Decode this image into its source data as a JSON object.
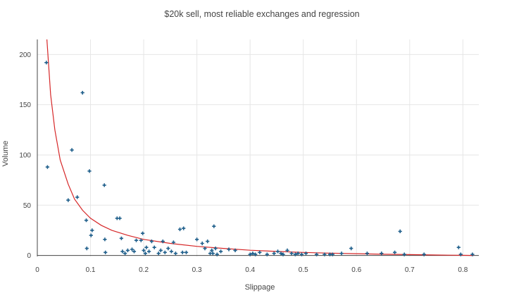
{
  "chart_data": {
    "type": "scatter",
    "title": "$20k sell, most reliable exchanges and regression",
    "xlabel": "Slippage",
    "ylabel": "Volume",
    "xlim": [
      0,
      0.83
    ],
    "ylim": [
      -1,
      215
    ],
    "x_ticks": [
      0,
      0.1,
      0.2,
      0.3,
      0.4,
      0.5,
      0.6,
      0.7,
      0.8
    ],
    "x_tick_labels": [
      "0",
      "0.1",
      "0.2",
      "0.3",
      "0.4",
      "0.5",
      "0.6",
      "0.7",
      "0.8"
    ],
    "y_ticks": [
      0,
      50,
      100,
      150,
      200
    ],
    "y_tick_labels": [
      "0",
      "50",
      "100",
      "150",
      "200"
    ],
    "grid": true,
    "colors": {
      "points": "#1f5f8b",
      "regression": "#d62728",
      "grid": "#e6e6e6",
      "axis": "#444444",
      "text": "#444444"
    },
    "series": [
      {
        "type": "scatter",
        "points": [
          [
            0.017,
            192
          ],
          [
            0.019,
            88
          ],
          [
            0.058,
            55
          ],
          [
            0.065,
            105
          ],
          [
            0.075,
            58
          ],
          [
            0.085,
            162
          ],
          [
            0.092,
            35
          ],
          [
            0.093,
            7
          ],
          [
            0.098,
            84
          ],
          [
            0.101,
            20
          ],
          [
            0.103,
            25
          ],
          [
            0.126,
            70
          ],
          [
            0.127,
            16
          ],
          [
            0.128,
            3
          ],
          [
            0.15,
            37
          ],
          [
            0.155,
            37
          ],
          [
            0.158,
            17
          ],
          [
            0.16,
            4
          ],
          [
            0.165,
            2
          ],
          [
            0.17,
            5
          ],
          [
            0.178,
            6
          ],
          [
            0.182,
            4
          ],
          [
            0.186,
            15
          ],
          [
            0.195,
            15
          ],
          [
            0.198,
            22
          ],
          [
            0.2,
            5
          ],
          [
            0.203,
            2
          ],
          [
            0.205,
            8
          ],
          [
            0.21,
            4
          ],
          [
            0.215,
            14
          ],
          [
            0.22,
            8
          ],
          [
            0.228,
            2
          ],
          [
            0.232,
            5
          ],
          [
            0.236,
            14
          ],
          [
            0.24,
            3
          ],
          [
            0.246,
            7
          ],
          [
            0.252,
            4
          ],
          [
            0.256,
            13
          ],
          [
            0.26,
            2
          ],
          [
            0.268,
            26
          ],
          [
            0.273,
            3
          ],
          [
            0.275,
            27
          ],
          [
            0.28,
            3
          ],
          [
            0.3,
            16
          ],
          [
            0.31,
            12
          ],
          [
            0.315,
            7
          ],
          [
            0.32,
            14
          ],
          [
            0.325,
            2
          ],
          [
            0.328,
            5
          ],
          [
            0.33,
            2
          ],
          [
            0.332,
            29
          ],
          [
            0.335,
            7
          ],
          [
            0.338,
            1
          ],
          [
            0.345,
            4
          ],
          [
            0.36,
            6
          ],
          [
            0.372,
            5
          ],
          [
            0.4,
            1
          ],
          [
            0.405,
            2
          ],
          [
            0.41,
            1
          ],
          [
            0.418,
            3
          ],
          [
            0.432,
            1
          ],
          [
            0.445,
            2
          ],
          [
            0.452,
            4
          ],
          [
            0.458,
            2
          ],
          [
            0.462,
            1
          ],
          [
            0.47,
            5
          ],
          [
            0.478,
            2
          ],
          [
            0.485,
            1
          ],
          [
            0.49,
            2
          ],
          [
            0.497,
            1
          ],
          [
            0.505,
            2
          ],
          [
            0.525,
            1
          ],
          [
            0.54,
            1
          ],
          [
            0.55,
            1
          ],
          [
            0.555,
            1
          ],
          [
            0.572,
            2
          ],
          [
            0.59,
            7
          ],
          [
            0.62,
            2
          ],
          [
            0.647,
            2
          ],
          [
            0.672,
            3
          ],
          [
            0.682,
            24
          ],
          [
            0.69,
            1
          ],
          [
            0.727,
            1
          ],
          [
            0.792,
            8
          ],
          [
            0.796,
            1
          ],
          [
            0.818,
            1
          ]
        ]
      },
      {
        "type": "line",
        "points": [
          [
            0.018,
            215
          ],
          [
            0.025,
            160
          ],
          [
            0.033,
            125
          ],
          [
            0.043,
            95
          ],
          [
            0.058,
            71
          ],
          [
            0.07,
            56
          ],
          [
            0.085,
            45
          ],
          [
            0.1,
            37
          ],
          [
            0.12,
            30
          ],
          [
            0.14,
            25
          ],
          [
            0.17,
            20
          ],
          [
            0.2,
            16
          ],
          [
            0.25,
            12
          ],
          [
            0.3,
            9
          ],
          [
            0.35,
            7
          ],
          [
            0.4,
            5.2
          ],
          [
            0.45,
            4
          ],
          [
            0.5,
            3
          ],
          [
            0.55,
            2.3
          ],
          [
            0.6,
            1.7
          ],
          [
            0.65,
            1.2
          ],
          [
            0.7,
            0.8
          ],
          [
            0.75,
            0.4
          ],
          [
            0.8,
            0.1
          ],
          [
            0.82,
            0
          ]
        ]
      }
    ]
  }
}
